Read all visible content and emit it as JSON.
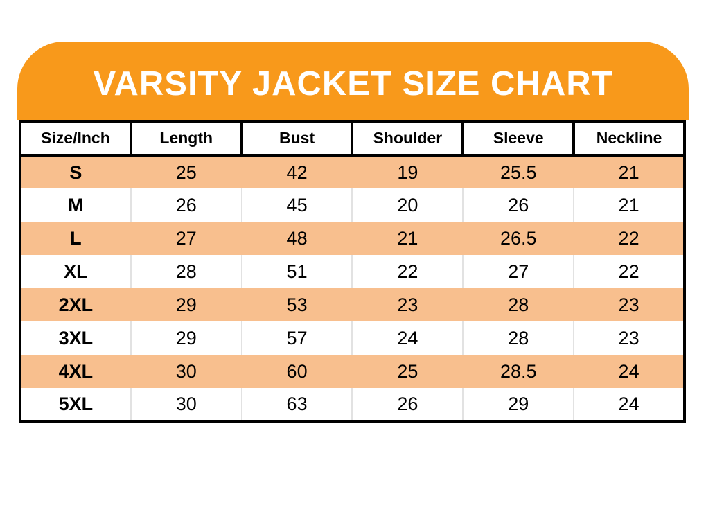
{
  "banner": {
    "title": "VARSITY JACKET SIZE CHART"
  },
  "chart_data": {
    "type": "table",
    "title": "VARSITY JACKET SIZE CHART",
    "columns": [
      "Size/Inch",
      "Length",
      "Bust",
      "Shoulder",
      "Sleeve",
      "Neckline"
    ],
    "rows": [
      [
        "S",
        25,
        42,
        19,
        25.5,
        21
      ],
      [
        "M",
        26,
        45,
        20,
        26,
        21
      ],
      [
        "L",
        27,
        48,
        21,
        26.5,
        22
      ],
      [
        "XL",
        28,
        51,
        22,
        27,
        22
      ],
      [
        "2XL",
        29,
        53,
        23,
        28,
        23
      ],
      [
        "3XL",
        29,
        57,
        24,
        28,
        23
      ],
      [
        "4XL",
        30,
        60,
        25,
        28.5,
        24
      ],
      [
        "5XL",
        30,
        63,
        26,
        29,
        24
      ]
    ],
    "layout": {
      "striped_row_indices": [
        0,
        2,
        4,
        6
      ],
      "first_column_is_row_label": true
    }
  },
  "styles": {
    "banner_background": "#F8991B",
    "stripe_color": "#F8BF8E",
    "header_cell_background": "#FFFFFF",
    "border_color": "#000000",
    "title_color": "#FFFFFF",
    "text_color": "#000000",
    "page_background": "#FFFFFF",
    "separator_color": "#E2E2E2"
  }
}
